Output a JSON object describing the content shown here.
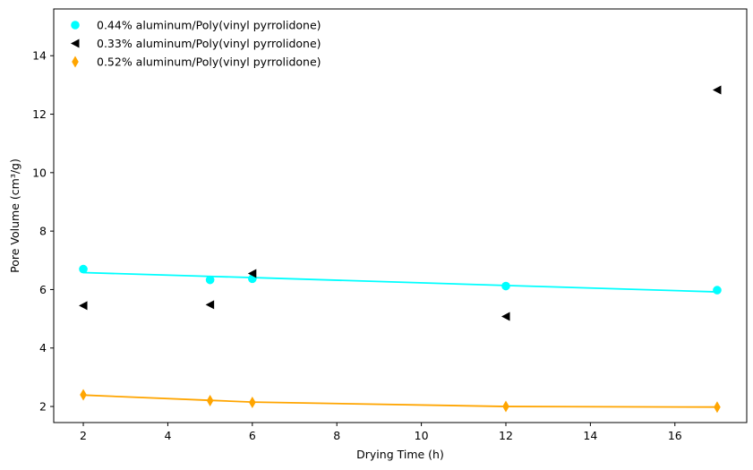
{
  "chart_data": {
    "type": "scatter",
    "title": "",
    "xlabel": "Drying Time (h)",
    "ylabel": "Pore Volume (cm³/g)",
    "xlim": [
      1.3,
      17.7
    ],
    "ylim": [
      1.45,
      15.6
    ],
    "xticks": [
      2,
      4,
      6,
      8,
      10,
      12,
      14,
      16
    ],
    "yticks": [
      2,
      4,
      6,
      8,
      10,
      12,
      14
    ],
    "grid": false,
    "legend": "top-left",
    "series": [
      {
        "name": "0.44% aluminum/Poly(vinyl pyrrolidone)",
        "color": "#00ffff",
        "marker": "circle",
        "x": [
          2,
          5,
          6,
          12,
          17
        ],
        "y": [
          6.7,
          6.33,
          6.37,
          6.12,
          5.98
        ],
        "fit_line": {
          "x": [
            2,
            5,
            6,
            12,
            17
          ],
          "y": [
            6.58,
            6.45,
            6.41,
            6.14,
            5.92
          ]
        }
      },
      {
        "name": "0.33% aluminum/Poly(vinyl pyrrolidone)",
        "color": "#000000",
        "marker": "triangle-left",
        "x": [
          2,
          5,
          6,
          12,
          17
        ],
        "y": [
          5.45,
          5.48,
          6.55,
          5.08,
          12.83
        ]
      },
      {
        "name": "0.52% aluminum/Poly(vinyl pyrrolidone)",
        "color": "#ffa500",
        "marker": "thin-diamond",
        "x": [
          2,
          5,
          6,
          12,
          17
        ],
        "y": [
          2.4,
          2.2,
          2.14,
          2.0,
          1.98
        ],
        "fit_line": {
          "x": [
            2,
            5,
            6,
            12,
            17
          ],
          "y": [
            2.39,
            2.21,
            2.15,
            2.0,
            1.98
          ]
        }
      }
    ]
  }
}
